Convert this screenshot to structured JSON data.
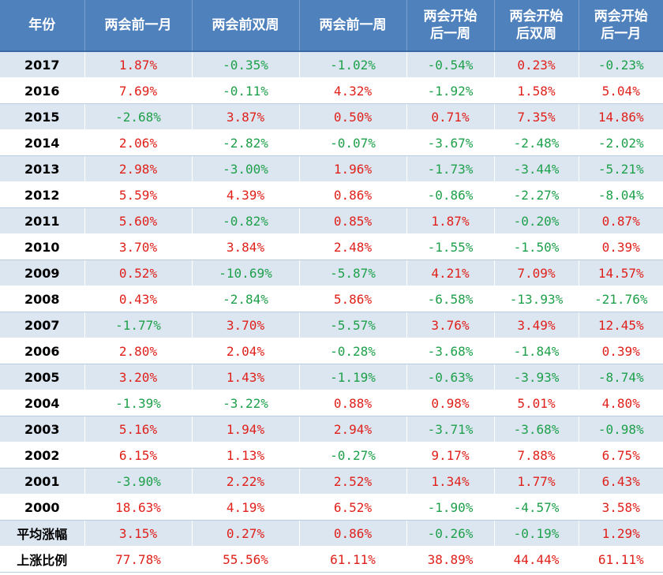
{
  "headers": [
    "年份",
    "两会前一月",
    "两会前双周",
    "两会前一周",
    "两会开始\n后一周",
    "两会开始\n后双周",
    "两会开始\n后一月"
  ],
  "colors": {
    "header_bg": "#4f81bd",
    "band_bg": "#dce6f1",
    "positive": "#e0201a",
    "negative": "#1ea04a"
  },
  "rows": [
    {
      "label": "2017",
      "values": [
        "1.87%",
        "-0.35%",
        "-1.02%",
        "-0.54%",
        "0.23%",
        "-0.23%"
      ]
    },
    {
      "label": "2016",
      "values": [
        "7.69%",
        "-0.11%",
        "4.32%",
        "-1.92%",
        "1.58%",
        "5.04%"
      ]
    },
    {
      "label": "2015",
      "values": [
        "-2.68%",
        "3.87%",
        "0.50%",
        "0.71%",
        "7.35%",
        "14.86%"
      ]
    },
    {
      "label": "2014",
      "values": [
        "2.06%",
        "-2.82%",
        "-0.07%",
        "-3.67%",
        "-2.48%",
        "-2.02%"
      ]
    },
    {
      "label": "2013",
      "values": [
        "2.98%",
        "-3.00%",
        "1.96%",
        "-1.73%",
        "-3.44%",
        "-5.21%"
      ]
    },
    {
      "label": "2012",
      "values": [
        "5.59%",
        "4.39%",
        "0.86%",
        "-0.86%",
        "-2.27%",
        "-8.04%"
      ]
    },
    {
      "label": "2011",
      "values": [
        "5.60%",
        "-0.82%",
        "0.85%",
        "1.87%",
        "-0.20%",
        "0.87%"
      ]
    },
    {
      "label": "2010",
      "values": [
        "3.70%",
        "3.84%",
        "2.48%",
        "-1.55%",
        "-1.50%",
        "0.39%"
      ]
    },
    {
      "label": "2009",
      "values": [
        "0.52%",
        "-10.69%",
        "-5.87%",
        "4.21%",
        "7.09%",
        "14.57%"
      ]
    },
    {
      "label": "2008",
      "values": [
        "0.43%",
        "-2.84%",
        "5.86%",
        "-6.58%",
        "-13.93%",
        "-21.76%"
      ]
    },
    {
      "label": "2007",
      "values": [
        "-1.77%",
        "3.70%",
        "-5.57%",
        "3.76%",
        "3.49%",
        "12.45%"
      ]
    },
    {
      "label": "2006",
      "values": [
        "2.80%",
        "2.04%",
        "-0.28%",
        "-3.68%",
        "-1.84%",
        "0.39%"
      ]
    },
    {
      "label": "2005",
      "values": [
        "3.20%",
        "1.43%",
        "-1.19%",
        "-0.63%",
        "-3.93%",
        "-8.74%"
      ]
    },
    {
      "label": "2004",
      "values": [
        "-1.39%",
        "-3.22%",
        "0.88%",
        "0.98%",
        "5.01%",
        "4.80%"
      ]
    },
    {
      "label": "2003",
      "values": [
        "5.16%",
        "1.94%",
        "2.94%",
        "-3.71%",
        "-3.68%",
        "-0.98%"
      ]
    },
    {
      "label": "2002",
      "values": [
        "6.15%",
        "1.13%",
        "-0.27%",
        "9.17%",
        "7.88%",
        "6.75%"
      ]
    },
    {
      "label": "2001",
      "values": [
        "-3.90%",
        "2.22%",
        "2.52%",
        "1.34%",
        "1.77%",
        "6.43%"
      ]
    },
    {
      "label": "2000",
      "values": [
        "18.63%",
        "4.19%",
        "6.52%",
        "-1.90%",
        "-4.57%",
        "3.58%"
      ]
    },
    {
      "label": "平均涨幅",
      "values": [
        "3.15%",
        "0.27%",
        "0.86%",
        "-0.26%",
        "-0.19%",
        "1.29%"
      ]
    },
    {
      "label": "上涨比例",
      "values": [
        "77.78%",
        "55.56%",
        "61.11%",
        "38.89%",
        "44.44%",
        "61.11%"
      ]
    }
  ]
}
